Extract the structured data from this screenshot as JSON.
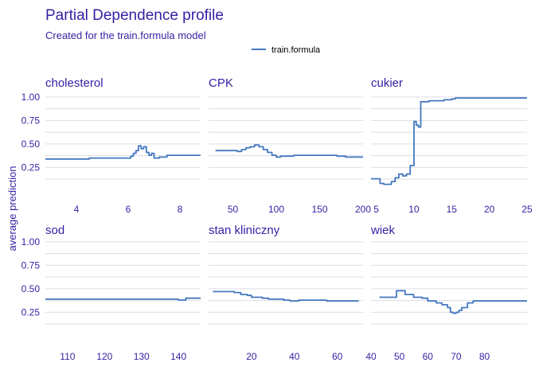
{
  "chart_data": {
    "type": "line",
    "title": "Partial Dependence profile",
    "subtitle": "Created for the train.formula model",
    "ylabel": "average prediction",
    "legend": {
      "position": "top",
      "entries": [
        {
          "name": "train.formula",
          "color": "#4378bf"
        }
      ]
    },
    "ylim": [
      0.05,
      1.05
    ],
    "yticks": [
      0.25,
      0.5,
      0.75,
      1.0
    ],
    "ytick_labels": [
      "0.25",
      "0.50",
      "0.75",
      "1.00"
    ],
    "grid": true,
    "panels": [
      {
        "title": "cholesterol",
        "xlim": [
          2.8,
          8.8
        ],
        "xticks": [
          4,
          6,
          8
        ],
        "x": [
          2.8,
          3.5,
          4.5,
          5.5,
          5.9,
          6.1,
          6.2,
          6.3,
          6.4,
          6.5,
          6.6,
          6.7,
          6.8,
          6.9,
          7.0,
          7.2,
          7.5,
          8.0,
          8.5,
          8.8
        ],
        "y": [
          0.34,
          0.34,
          0.35,
          0.35,
          0.35,
          0.37,
          0.4,
          0.43,
          0.48,
          0.45,
          0.47,
          0.41,
          0.38,
          0.4,
          0.35,
          0.36,
          0.38,
          0.38,
          0.38,
          0.38
        ]
      },
      {
        "title": "CPK",
        "xlim": [
          22,
          200
        ],
        "xticks": [
          50,
          100,
          150,
          200
        ],
        "x": [
          30,
          40,
          50,
          55,
          60,
          65,
          70,
          75,
          80,
          85,
          90,
          95,
          100,
          105,
          110,
          120,
          130,
          140,
          150,
          160,
          170,
          180,
          190,
          200
        ],
        "y": [
          0.43,
          0.43,
          0.43,
          0.42,
          0.44,
          0.46,
          0.47,
          0.49,
          0.47,
          0.44,
          0.41,
          0.38,
          0.36,
          0.37,
          0.37,
          0.38,
          0.38,
          0.38,
          0.38,
          0.38,
          0.37,
          0.36,
          0.36,
          0.36
        ]
      },
      {
        "title": "cukier",
        "xlim": [
          4.3,
          25
        ],
        "xticks": [
          5,
          10,
          15,
          20,
          25
        ],
        "x": [
          4.3,
          5.0,
          5.5,
          6.0,
          7.0,
          7.5,
          8.0,
          8.5,
          9.0,
          9.5,
          10.0,
          10.3,
          10.6,
          10.9,
          11.2,
          11.5,
          12.0,
          13.0,
          14.0,
          15.0,
          15.5,
          20.0,
          25.0
        ],
        "y": [
          0.13,
          0.13,
          0.08,
          0.07,
          0.1,
          0.14,
          0.18,
          0.16,
          0.18,
          0.27,
          0.74,
          0.7,
          0.68,
          0.95,
          0.95,
          0.95,
          0.96,
          0.96,
          0.97,
          0.98,
          0.99,
          0.99,
          0.99
        ]
      },
      {
        "title": "sod",
        "xlim": [
          104,
          146
        ],
        "xticks": [
          110,
          120,
          130,
          140
        ],
        "x": [
          104,
          110,
          120,
          130,
          135,
          138,
          140,
          142,
          146
        ],
        "y": [
          0.39,
          0.39,
          0.39,
          0.39,
          0.39,
          0.39,
          0.38,
          0.4,
          0.4
        ]
      },
      {
        "title": "stan  kliniczny",
        "xlim": [
          0,
          72
        ],
        "xticks": [
          20,
          40,
          60
        ],
        "x": [
          2,
          10,
          12,
          15,
          18,
          20,
          25,
          28,
          30,
          35,
          38,
          40,
          42,
          45,
          50,
          55,
          60,
          65,
          70
        ],
        "y": [
          0.47,
          0.47,
          0.46,
          0.44,
          0.43,
          0.41,
          0.4,
          0.39,
          0.39,
          0.38,
          0.37,
          0.37,
          0.38,
          0.38,
          0.38,
          0.37,
          0.37,
          0.37,
          0.37
        ]
      },
      {
        "title": "wiek",
        "xlim": [
          40,
          95
        ],
        "xticks": [
          40,
          50,
          60,
          70,
          80
        ],
        "x": [
          43,
          46,
          48,
          49,
          50,
          52,
          55,
          58,
          60,
          63,
          65,
          67,
          68,
          69,
          70,
          71,
          72,
          74,
          76,
          80,
          85,
          90,
          95
        ],
        "y": [
          0.41,
          0.41,
          0.41,
          0.48,
          0.48,
          0.44,
          0.41,
          0.4,
          0.37,
          0.35,
          0.33,
          0.3,
          0.25,
          0.24,
          0.25,
          0.27,
          0.3,
          0.35,
          0.37,
          0.37,
          0.37,
          0.37,
          0.37
        ]
      }
    ]
  }
}
